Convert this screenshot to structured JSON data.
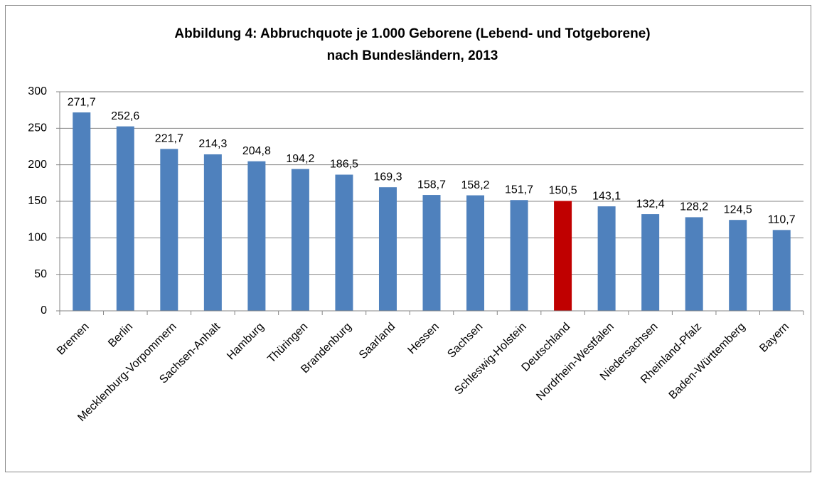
{
  "chart_data": {
    "type": "bar",
    "title": [
      "Abbildung  4: Abbruchquote je 1.000 Geborene (Lebend- und Totgeborene)",
      "nach Bundesländern, 2013"
    ],
    "categories": [
      "Bremen",
      "Berlin",
      "Mecklenburg-Vorpommern",
      "Sachsen-Anhalt",
      "Hamburg",
      "Thüringen",
      "Brandenburg",
      "Saarland",
      "Hessen",
      "Sachsen",
      "Schleswig-Holstein",
      "Deutschland",
      "Nordrhein-Westfalen",
      "Niedersachsen",
      "Rheinland-Pfalz",
      "Baden-Württemberg",
      "Bayern"
    ],
    "values": [
      271.7,
      252.6,
      221.7,
      214.3,
      204.8,
      194.2,
      186.5,
      169.3,
      158.7,
      158.2,
      151.7,
      150.5,
      143.1,
      132.4,
      128.2,
      124.5,
      110.7
    ],
    "value_labels": [
      "271,7",
      "252,6",
      "221,7",
      "214,3",
      "204,8",
      "194,2",
      "186,5",
      "169,3",
      "158,7",
      "158,2",
      "151,7",
      "150,5",
      "143,1",
      "132,4",
      "128,2",
      "124,5",
      "110,7"
    ],
    "colors": [
      "#4f81bd",
      "#4f81bd",
      "#4f81bd",
      "#4f81bd",
      "#4f81bd",
      "#4f81bd",
      "#4f81bd",
      "#4f81bd",
      "#4f81bd",
      "#4f81bd",
      "#4f81bd",
      "#c00000",
      "#4f81bd",
      "#4f81bd",
      "#4f81bd",
      "#4f81bd",
      "#4f81bd"
    ],
    "ylim": [
      0,
      300
    ],
    "yticks": [
      0,
      50,
      100,
      150,
      200,
      250,
      300
    ],
    "grid": true
  }
}
